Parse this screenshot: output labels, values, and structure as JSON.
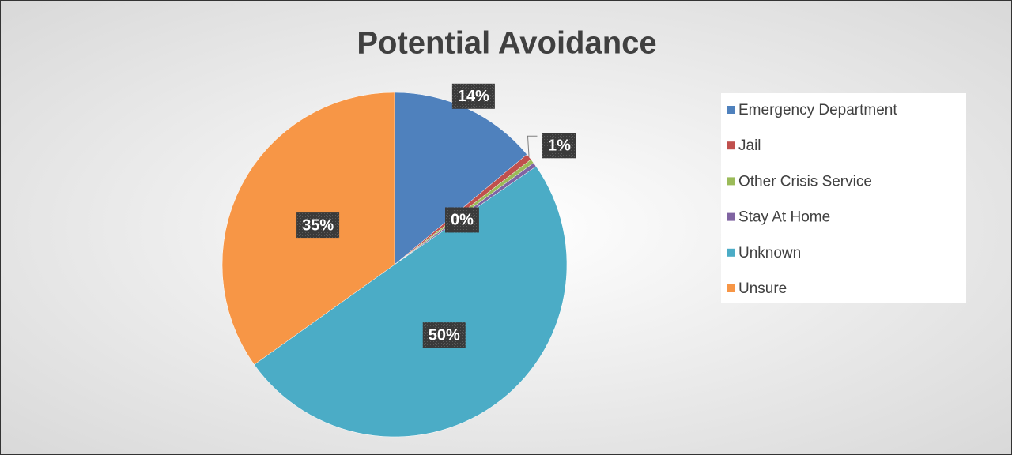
{
  "chart_data": {
    "type": "pie",
    "title": "Potential Avoidance",
    "categories": [
      "Emergency Department",
      "Jail",
      "Other Crisis Service",
      "Stay At Home",
      "Unknown",
      "Unsure"
    ],
    "values": [
      14,
      0.6,
      0.4,
      0.4,
      50,
      35
    ],
    "value_labels": [
      "14%",
      "1%",
      "0%",
      null,
      "50%",
      "35%"
    ],
    "colors": [
      "#4f81bd",
      "#c0504d",
      "#9bbb59",
      "#8064a2",
      "#4bacc6",
      "#f79646"
    ],
    "legend": "right"
  }
}
